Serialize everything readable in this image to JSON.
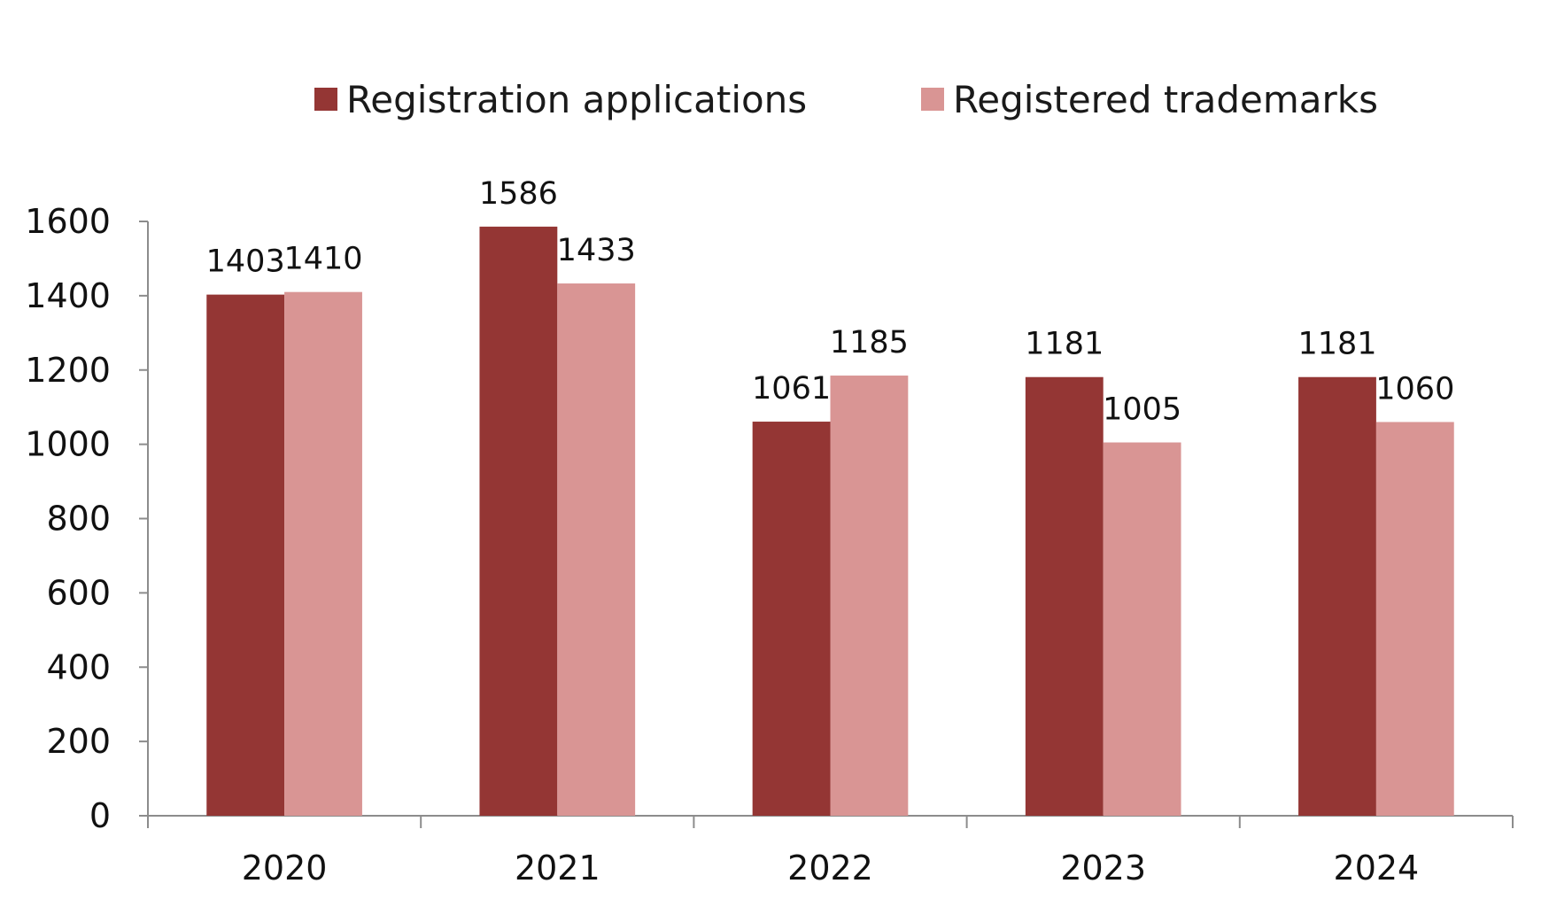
{
  "colors": {
    "background": "#ffffff",
    "axis": "#8c8c8c",
    "text": "#111111"
  },
  "chart_data": {
    "type": "bar",
    "title": "",
    "xlabel": "",
    "ylabel": "",
    "categories": [
      "2020",
      "2021",
      "2022",
      "2023",
      "2024"
    ],
    "series": [
      {
        "name": "Registration applications",
        "color": "#943634",
        "values": [
          1403,
          1586,
          1061,
          1181,
          1181
        ]
      },
      {
        "name": "Registered trademarks",
        "color": "#d99594",
        "values": [
          1410,
          1433,
          1185,
          1005,
          1060
        ]
      }
    ],
    "ylim": [
      0,
      1600
    ],
    "yticks": [
      0,
      200,
      400,
      600,
      800,
      1000,
      1200,
      1400,
      1600
    ],
    "grid": false,
    "legend_position": "top",
    "data_labels": true
  }
}
